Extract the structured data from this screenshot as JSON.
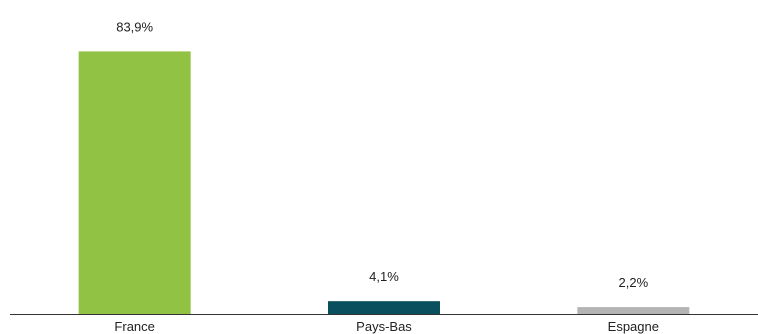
{
  "chart_data": {
    "type": "bar",
    "categories": [
      "France",
      "Pays-Bas",
      "Espagne"
    ],
    "values": [
      83.9,
      4.1,
      2.2
    ],
    "data_labels": [
      "83,9%",
      "4,1%",
      "2,2%"
    ],
    "colors": [
      "#92c244",
      "#0a4f5e",
      "#b4b4b4"
    ],
    "ylim": [
      0,
      100
    ],
    "grid": false,
    "legend": "none"
  }
}
